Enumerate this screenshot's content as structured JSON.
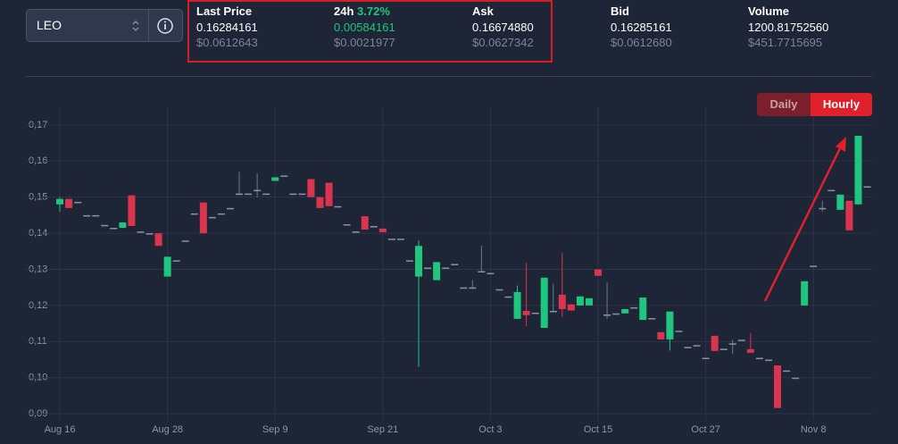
{
  "selector": {
    "value": "LEO"
  },
  "stats": [
    {
      "label": "Last Price",
      "value": "0.16284161",
      "usd": "$0.0612643"
    },
    {
      "label": "24h",
      "change": "3.72%",
      "value": "0.00584161",
      "usd": "$0.0021977"
    },
    {
      "label": "Ask",
      "value": "0.16674880",
      "usd": "$0.0627342"
    },
    {
      "label": "Bid",
      "value": "0.16285161",
      "usd": "$0.0612680"
    },
    {
      "label": "Volume",
      "value": "1200.81752560",
      "usd": "$451.7715695"
    }
  ],
  "buttons": [
    "Daily",
    "Hourly"
  ],
  "chart_data": {
    "type": "candlestick",
    "up_color": "#1fc77e",
    "down_color": "#d9354f",
    "flat_color": "#8a93a6",
    "grid": true,
    "categories": [
      "Aug 16",
      null,
      null,
      null,
      null,
      null,
      null,
      null,
      null,
      null,
      null,
      null,
      "Aug 28",
      null,
      null,
      null,
      null,
      null,
      null,
      null,
      null,
      null,
      null,
      null,
      "Sep 9",
      null,
      null,
      null,
      null,
      null,
      null,
      null,
      null,
      null,
      null,
      null,
      "Sep 21",
      null,
      null,
      null,
      null,
      null,
      null,
      null,
      null,
      null,
      null,
      null,
      "Oct 3",
      null,
      null,
      null,
      null,
      null,
      null,
      null,
      null,
      null,
      null,
      null,
      "Oct 15",
      null,
      null,
      null,
      null,
      null,
      null,
      null,
      null,
      null,
      null,
      null,
      "Oct 27",
      null,
      null,
      null,
      null,
      null,
      null,
      null,
      null,
      null,
      null,
      null,
      "Nov 8",
      null,
      null,
      null,
      null,
      null,
      null
    ],
    "open": [
      0.148,
      0.1495,
      0.1487,
      0.145,
      0.145,
      0.1423,
      0.1415,
      0.1415,
      0.1505,
      0.1405,
      0.14,
      0.14,
      0.128,
      0.1325,
      0.138,
      0.1455,
      0.1485,
      0.1445,
      0.1455,
      0.147,
      0.151,
      0.151,
      0.152,
      0.151,
      0.1545,
      0.156,
      0.151,
      0.151,
      0.155,
      0.15,
      0.154,
      0.1475,
      0.1425,
      0.1405,
      0.1447,
      0.142,
      0.1413,
      0.1385,
      0.1385,
      0.1325,
      0.128,
      0.1305,
      0.127,
      0.1305,
      0.1315,
      0.125,
      0.125,
      0.1295,
      0.129,
      0.1245,
      0.1225,
      0.1163,
      0.1185,
      0.118,
      0.1138,
      0.1185,
      0.123,
      0.1203,
      0.12,
      0.12,
      0.13,
      0.1175,
      0.1178,
      0.1178,
      0.1195,
      0.116,
      0.1165,
      0.1126,
      0.1106,
      0.113,
      0.1085,
      0.109,
      0.1055,
      0.1116,
      0.108,
      0.1095,
      0.1105,
      0.1079,
      0.1055,
      0.105,
      0.1034,
      0.102,
      0.1,
      0.12,
      0.131,
      0.147,
      0.152,
      0.1465,
      0.149,
      0.148,
      0.153
    ],
    "high": [
      0.15,
      0.1495,
      0.1487,
      0.145,
      0.145,
      0.1423,
      0.1415,
      0.143,
      0.1505,
      0.1405,
      0.14,
      0.14,
      0.1335,
      0.1325,
      0.138,
      0.1455,
      0.1485,
      0.1445,
      0.1455,
      0.147,
      0.157,
      0.151,
      0.1565,
      0.151,
      0.1555,
      0.156,
      0.151,
      0.151,
      0.155,
      0.15,
      0.154,
      0.1475,
      0.1425,
      0.1405,
      0.1447,
      0.142,
      0.1413,
      0.1385,
      0.1385,
      0.1325,
      0.138,
      0.1305,
      0.132,
      0.1305,
      0.1315,
      0.125,
      0.127,
      0.1365,
      0.129,
      0.1245,
      0.1225,
      0.1255,
      0.1318,
      0.118,
      0.1277,
      0.126,
      0.1345,
      0.1203,
      0.1225,
      0.122,
      0.13,
      0.1265,
      0.1178,
      0.119,
      0.1195,
      0.1222,
      0.1165,
      0.1126,
      0.1183,
      0.113,
      0.1085,
      0.109,
      0.1055,
      0.1116,
      0.108,
      0.1105,
      0.1105,
      0.1124,
      0.1055,
      0.105,
      0.1034,
      0.102,
      0.1,
      0.1267,
      0.131,
      0.149,
      0.152,
      0.1507,
      0.149,
      0.167,
      0.153
    ],
    "low": [
      0.146,
      0.147,
      0.1487,
      0.145,
      0.145,
      0.1423,
      0.1415,
      0.1415,
      0.142,
      0.1405,
      0.14,
      0.1365,
      0.128,
      0.1325,
      0.138,
      0.1455,
      0.14,
      0.1445,
      0.1455,
      0.147,
      0.151,
      0.151,
      0.15,
      0.151,
      0.1545,
      0.156,
      0.151,
      0.151,
      0.15,
      0.147,
      0.1475,
      0.1475,
      0.1425,
      0.1405,
      0.141,
      0.142,
      0.1403,
      0.1385,
      0.1385,
      0.1325,
      0.103,
      0.1305,
      0.127,
      0.1305,
      0.1315,
      0.125,
      0.125,
      0.1295,
      0.129,
      0.1245,
      0.1225,
      0.1163,
      0.1143,
      0.118,
      0.1138,
      0.1185,
      0.1168,
      0.1186,
      0.12,
      0.12,
      0.1282,
      0.1163,
      0.1178,
      0.1178,
      0.1195,
      0.116,
      0.1165,
      0.1106,
      0.1075,
      0.113,
      0.1085,
      0.109,
      0.1055,
      0.1074,
      0.108,
      0.1065,
      0.1105,
      0.1069,
      0.1055,
      0.105,
      0.0916,
      0.102,
      0.1,
      0.12,
      0.131,
      0.146,
      0.152,
      0.1465,
      0.1408,
      0.148,
      0.153
    ],
    "close": [
      0.1495,
      0.147,
      0.1487,
      0.145,
      0.145,
      0.1423,
      0.1415,
      0.143,
      0.142,
      0.1405,
      0.14,
      0.1365,
      0.1335,
      0.1325,
      0.138,
      0.1455,
      0.14,
      0.1445,
      0.1455,
      0.147,
      0.151,
      0.151,
      0.152,
      0.151,
      0.1555,
      0.156,
      0.151,
      0.151,
      0.15,
      0.147,
      0.1475,
      0.1475,
      0.1425,
      0.1405,
      0.141,
      0.142,
      0.1403,
      0.1385,
      0.1385,
      0.1325,
      0.1365,
      0.1305,
      0.132,
      0.1305,
      0.1315,
      0.125,
      0.125,
      0.1295,
      0.129,
      0.1245,
      0.1225,
      0.1237,
      0.1173,
      0.118,
      0.1277,
      0.1185,
      0.119,
      0.1186,
      0.1225,
      0.122,
      0.1282,
      0.1175,
      0.1178,
      0.119,
      0.1195,
      0.1222,
      0.1165,
      0.1106,
      0.1183,
      0.113,
      0.1085,
      0.109,
      0.1055,
      0.1074,
      0.108,
      0.1095,
      0.1105,
      0.1069,
      0.1055,
      0.105,
      0.0916,
      0.102,
      0.1,
      0.1267,
      0.131,
      0.147,
      0.152,
      0.1507,
      0.1408,
      0.167,
      0.153
    ],
    "ylim": [
      0.0888,
      0.1712
    ],
    "yticks": [
      {
        "value": 0.09,
        "label": "0,09"
      },
      {
        "value": 0.1,
        "label": "0,10"
      },
      {
        "value": 0.11,
        "label": "0,11"
      },
      {
        "value": 0.12,
        "label": "0,12"
      },
      {
        "value": 0.13,
        "label": "0,13"
      },
      {
        "value": 0.14,
        "label": "0,14"
      },
      {
        "value": 0.15,
        "label": "0,15"
      },
      {
        "value": 0.16,
        "label": "0,16"
      },
      {
        "value": 0.17,
        "label": "0,17"
      }
    ]
  }
}
